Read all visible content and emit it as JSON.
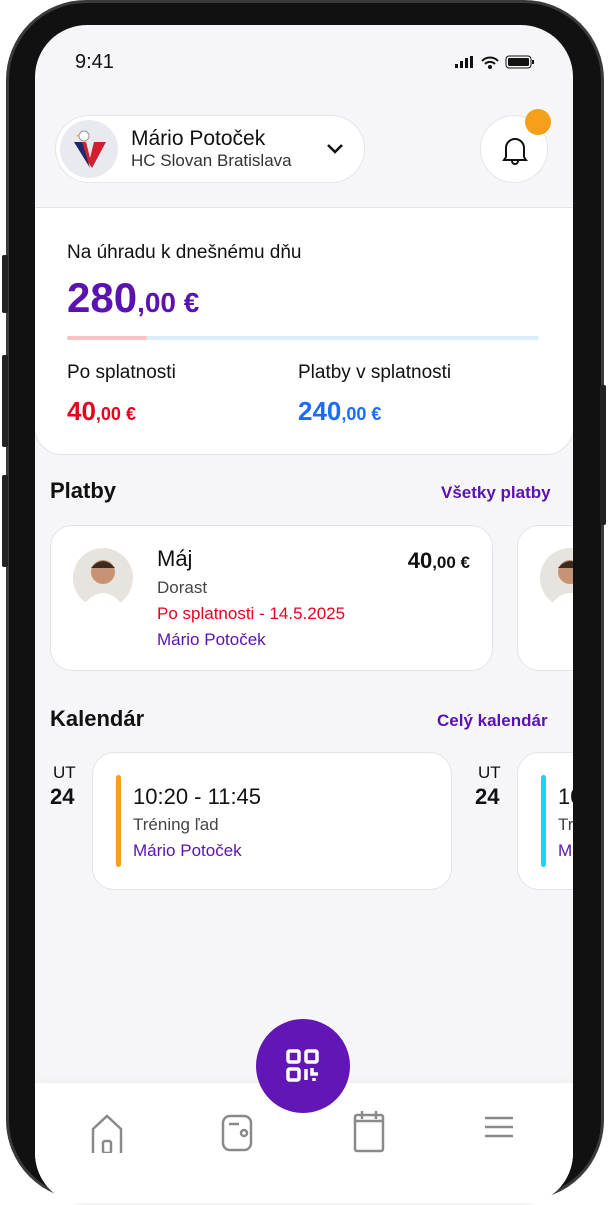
{
  "status_bar": {
    "time": "9:41"
  },
  "header": {
    "user_name": "Mário Potoček",
    "club_name": "HC Slovan Bratislava"
  },
  "summary": {
    "title": "Na úhradu k dnešnému dňu",
    "total_int": "280",
    "total_dec": ",00 €",
    "overdue_fraction": 0.17,
    "overdue_label": "Po splatnosti",
    "overdue_int": "40",
    "overdue_dec": ",00 €",
    "due_label": "Platby v splatnosti",
    "due_int": "240",
    "due_dec": ",00 €"
  },
  "payments": {
    "title": "Platby",
    "link": "Všetky platby",
    "items": [
      {
        "month": "Máj",
        "group": "Dorast",
        "status": "Po splatnosti - 14.5.2025",
        "person": "Mário Potoček",
        "amount_int": "40",
        "amount_dec": ",00 €"
      }
    ]
  },
  "calendar": {
    "title": "Kalendár",
    "link": "Celý  kalendár",
    "items": [
      {
        "day": "UT",
        "date": "24",
        "time": "10:20 - 11:45",
        "name": "Tréning ľad",
        "person": "Mário Potoček",
        "color": "#f5a01a"
      },
      {
        "day": "UT",
        "date": "24",
        "time": "10",
        "name": "Tr",
        "person": "M",
        "color": "#19d6f0"
      }
    ]
  },
  "colors": {
    "accent": "#6216b5",
    "overdue": "#e8001c",
    "due": "#1a6cff"
  },
  "nav": {
    "items": [
      "home-icon",
      "wallet-icon",
      "calendar-icon",
      "menu-icon"
    ],
    "fab": "qr-code-icon"
  }
}
